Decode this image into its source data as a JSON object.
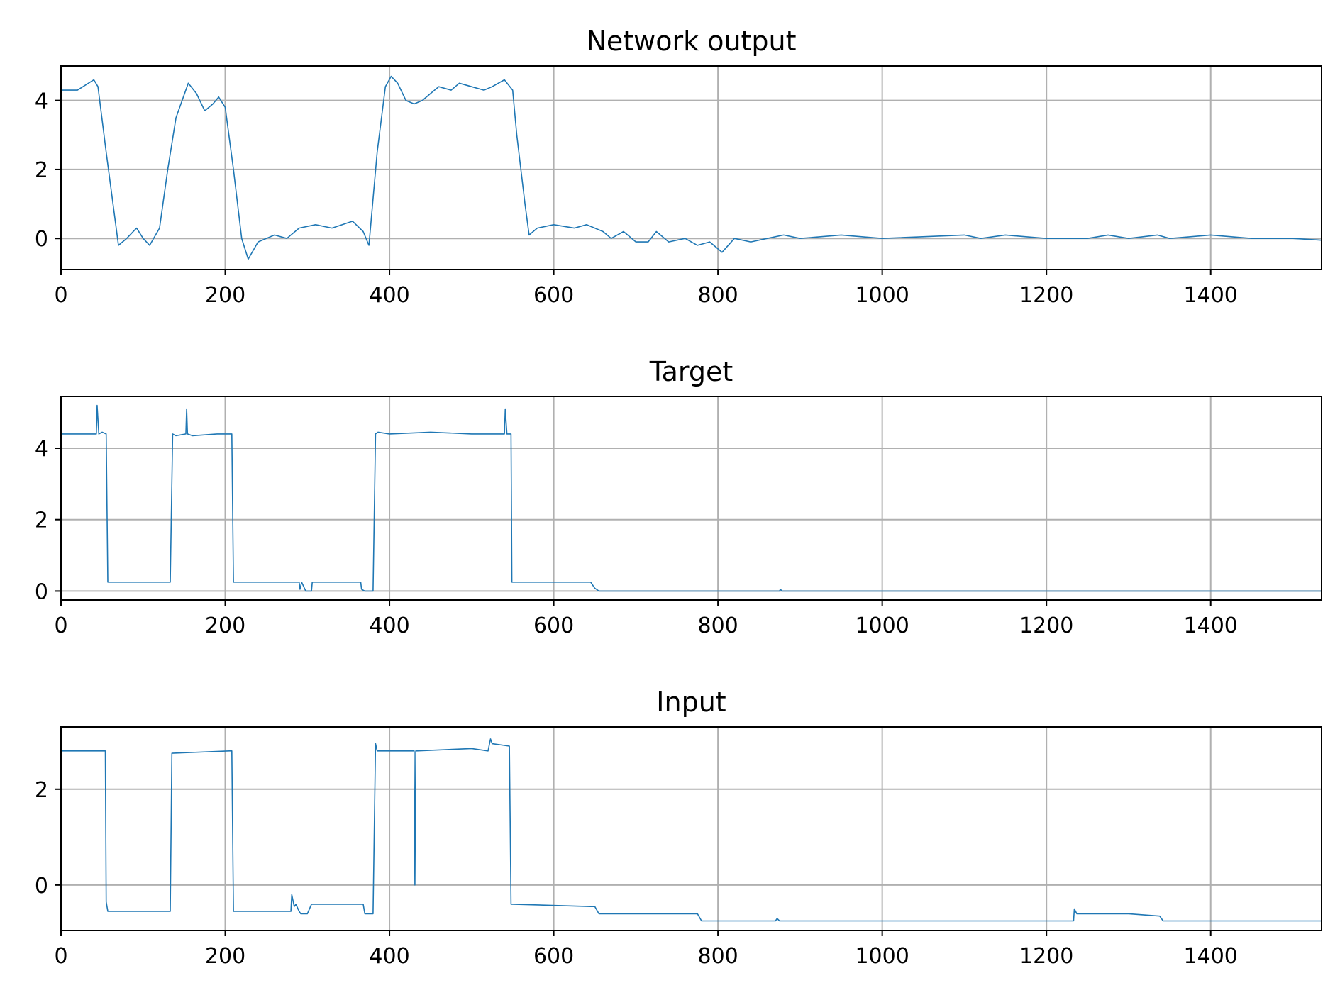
{
  "chart_data": [
    {
      "type": "line",
      "title": "Network output",
      "xlabel": "",
      "ylabel": "",
      "xlim": [
        0,
        1535
      ],
      "ylim": [
        -0.9,
        5.0
      ],
      "xticks": [
        0,
        200,
        400,
        600,
        800,
        1000,
        1200,
        1400
      ],
      "yticks": [
        0,
        2,
        4
      ],
      "grid": true,
      "color": "#1f77b4",
      "series": [
        {
          "x": [
            0,
            20,
            40,
            45,
            55,
            70,
            80,
            92,
            100,
            108,
            120,
            130,
            140,
            155,
            165,
            175,
            185,
            192,
            200,
            210,
            220,
            228,
            240,
            260,
            275,
            290,
            310,
            330,
            355,
            368,
            375,
            385,
            395,
            402,
            410,
            420,
            430,
            440,
            450,
            460,
            475,
            485,
            500,
            515,
            525,
            540,
            550,
            555,
            565,
            570,
            580,
            600,
            625,
            640,
            660,
            670,
            685,
            700,
            715,
            725,
            740,
            760,
            775,
            790,
            805,
            820,
            840,
            860,
            880,
            900,
            950,
            1000,
            1100,
            1120,
            1150,
            1200,
            1250,
            1275,
            1300,
            1335,
            1350,
            1400,
            1450,
            1500,
            1535
          ],
          "y": [
            4.3,
            4.3,
            4.6,
            4.4,
            2.5,
            -0.2,
            0.0,
            0.3,
            0.0,
            -0.2,
            0.3,
            2.0,
            3.5,
            4.5,
            4.2,
            3.7,
            3.9,
            4.1,
            3.8,
            2.0,
            0.0,
            -0.6,
            -0.1,
            0.1,
            0.0,
            0.3,
            0.4,
            0.3,
            0.5,
            0.2,
            -0.2,
            2.5,
            4.4,
            4.7,
            4.5,
            4.0,
            3.9,
            4.0,
            4.2,
            4.4,
            4.3,
            4.5,
            4.4,
            4.3,
            4.4,
            4.6,
            4.3,
            3.0,
            1.0,
            0.1,
            0.3,
            0.4,
            0.3,
            0.4,
            0.2,
            0.0,
            0.2,
            -0.1,
            -0.1,
            0.2,
            -0.1,
            0.0,
            -0.2,
            -0.1,
            -0.4,
            0.0,
            -0.1,
            0.0,
            0.1,
            0.0,
            0.1,
            0.0,
            0.1,
            0.0,
            0.1,
            0.0,
            0.0,
            0.1,
            0.0,
            0.1,
            0.0,
            0.1,
            0.0,
            0.0,
            -0.05
          ]
        }
      ]
    },
    {
      "type": "line",
      "title": "Target",
      "xlabel": "",
      "ylabel": "",
      "xlim": [
        0,
        1535
      ],
      "ylim": [
        -0.25,
        5.45
      ],
      "xticks": [
        0,
        200,
        400,
        600,
        800,
        1000,
        1200,
        1400
      ],
      "yticks": [
        0,
        2,
        4
      ],
      "grid": true,
      "color": "#1f77b4",
      "series": [
        {
          "x": [
            0,
            30,
            43,
            44,
            46,
            50,
            55,
            57,
            60,
            100,
            133,
            136,
            140,
            152,
            153,
            154,
            160,
            190,
            208,
            210,
            214,
            250,
            290,
            291,
            293,
            298,
            305,
            306,
            310,
            365,
            366,
            370,
            380,
            383,
            386,
            400,
            450,
            500,
            540,
            541,
            543,
            548,
            549,
            552,
            600,
            645,
            650,
            655,
            700,
            800,
            875,
            876,
            878,
            880,
            900,
            1000,
            1100,
            1200,
            1300,
            1400,
            1535
          ],
          "y": [
            4.4,
            4.4,
            4.4,
            5.2,
            4.4,
            4.45,
            4.4,
            0.25,
            0.25,
            0.25,
            0.25,
            4.4,
            4.35,
            4.4,
            5.1,
            4.4,
            4.35,
            4.4,
            4.4,
            0.25,
            0.25,
            0.25,
            0.25,
            0.05,
            0.25,
            0.0,
            0.0,
            0.25,
            0.25,
            0.25,
            0.05,
            0.0,
            0.0,
            4.4,
            4.45,
            4.4,
            4.45,
            4.4,
            4.4,
            5.1,
            4.4,
            4.4,
            0.25,
            0.25,
            0.25,
            0.25,
            0.08,
            0.0,
            0.0,
            0.0,
            0.0,
            0.05,
            0.0,
            0.0,
            0.0,
            0.0,
            0.0,
            0.0,
            0.0,
            0.0,
            0.0
          ]
        }
      ]
    },
    {
      "type": "line",
      "title": "Input",
      "xlabel": "",
      "ylabel": "",
      "xlim": [
        0,
        1535
      ],
      "ylim": [
        -0.95,
        3.3
      ],
      "xticks": [
        0,
        200,
        400,
        600,
        800,
        1000,
        1200,
        1400
      ],
      "yticks": [
        0,
        2
      ],
      "grid": true,
      "color": "#1f77b4",
      "series": [
        {
          "x": [
            0,
            54,
            55,
            57,
            133,
            135,
            205,
            208,
            210,
            280,
            281,
            284,
            286,
            290,
            292,
            300,
            305,
            368,
            370,
            380,
            383,
            385,
            400,
            430,
            431,
            432,
            433,
            500,
            520,
            523,
            525,
            546,
            548,
            550,
            645,
            650,
            655,
            700,
            775,
            780,
            870,
            872,
            875,
            880,
            1000,
            1100,
            1233,
            1234,
            1237,
            1300,
            1338,
            1342,
            1400,
            1535
          ],
          "y": [
            2.8,
            2.8,
            -0.35,
            -0.55,
            -0.55,
            2.75,
            2.8,
            2.8,
            -0.55,
            -0.55,
            -0.2,
            -0.45,
            -0.4,
            -0.55,
            -0.6,
            -0.6,
            -0.4,
            -0.4,
            -0.6,
            -0.6,
            2.95,
            2.8,
            2.8,
            2.8,
            0.0,
            2.8,
            2.8,
            2.85,
            2.8,
            3.05,
            2.95,
            2.9,
            -0.4,
            -0.4,
            -0.45,
            -0.45,
            -0.6,
            -0.6,
            -0.6,
            -0.75,
            -0.75,
            -0.7,
            -0.75,
            -0.75,
            -0.75,
            -0.75,
            -0.75,
            -0.5,
            -0.6,
            -0.6,
            -0.65,
            -0.75,
            -0.75,
            -0.75
          ]
        }
      ]
    }
  ]
}
